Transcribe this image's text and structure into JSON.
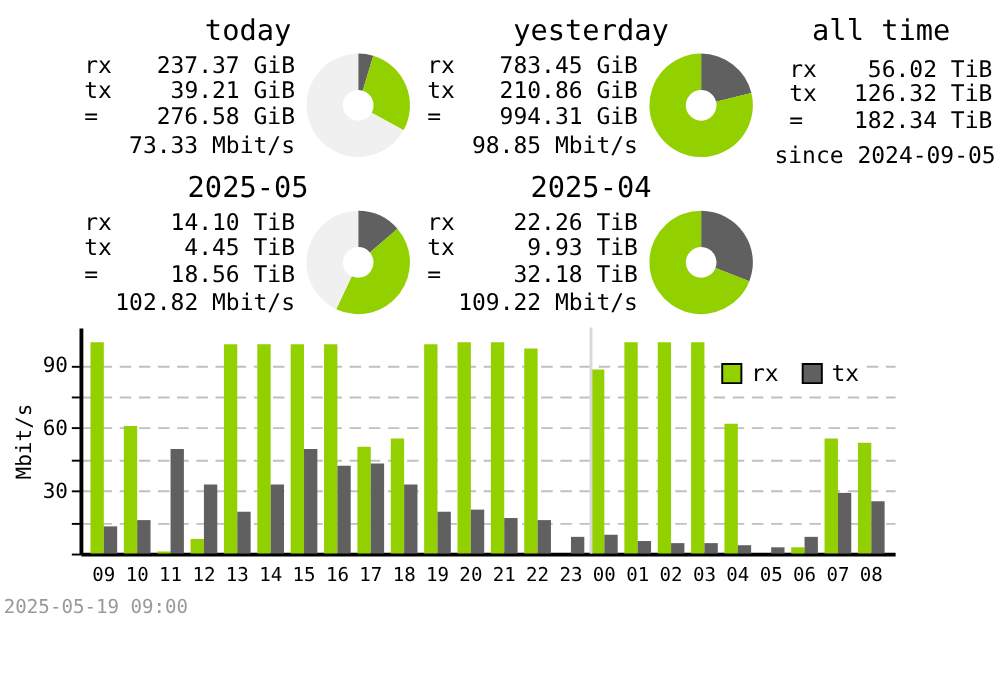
{
  "chart_data": [
    {
      "type": "donut",
      "title": "today",
      "categories": [
        null,
        null,
        null
      ],
      "values": [
        4.7,
        28.3,
        67
      ],
      "colors": [
        "#606060",
        "#92d000",
        "#f0f0f0"
      ],
      "annotations": [
        "rx 237.37 GiB",
        "tx 39.21 GiB",
        "= 276.58 GiB",
        "73.33 Mbit/s"
      ]
    },
    {
      "type": "donut",
      "title": "yesterday",
      "categories": [
        null,
        null
      ],
      "values": [
        21.2,
        78.8
      ],
      "colors": [
        "#606060",
        "#92d000"
      ],
      "annotations": [
        "rx 783.45 GiB",
        "tx 210.86 GiB",
        "= 994.31 GiB",
        "98.85 Mbit/s"
      ]
    },
    {
      "type": "other",
      "title": "all time",
      "annotations": [
        "rx 56.02 TiB",
        "tx 126.32 TiB",
        "= 182.34 TiB",
        "since 2024-09-05"
      ]
    },
    {
      "type": "donut",
      "title": "2025-05",
      "categories": [
        null,
        null,
        null
      ],
      "values": [
        13.7,
        43.3,
        43
      ],
      "colors": [
        "#606060",
        "#92d000",
        "#f0f0f0"
      ],
      "annotations": [
        "rx 14.10 TiB",
        "tx 4.45 TiB",
        "= 18.56 TiB",
        "102.82 Mbit/s"
      ]
    },
    {
      "type": "donut",
      "title": "2025-04",
      "categories": [
        null,
        null
      ],
      "values": [
        30.9,
        69.1
      ],
      "colors": [
        "#606060",
        "#92d000"
      ],
      "annotations": [
        "rx 22.26 TiB",
        "tx 9.93 TiB",
        "= 32.18 TiB",
        "109.22 Mbit/s"
      ]
    },
    {
      "type": "bar",
      "ylabel": "Mbit/s",
      "categories": [
        "09",
        "10",
        "11",
        "12",
        "13",
        "14",
        "15",
        "16",
        "17",
        "18",
        "19",
        "20",
        "21",
        "22",
        "23",
        "00",
        "01",
        "02",
        "03",
        "04",
        "05",
        "06",
        "07",
        "08"
      ],
      "series": [
        {
          "name": "rx",
          "color": "#92d000",
          "values": [
            101,
            61,
            1,
            7,
            100,
            100,
            100,
            100,
            51,
            55,
            100,
            101,
            101,
            98,
            0,
            88,
            101,
            101,
            101,
            62,
            0,
            3,
            55,
            53
          ]
        },
        {
          "name": "tx",
          "color": "#606060",
          "values": [
            13,
            16,
            50,
            33,
            20,
            33,
            50,
            42,
            43,
            33,
            20,
            21,
            17,
            16,
            8,
            9,
            6,
            5,
            5,
            4,
            3,
            8,
            29,
            25
          ]
        }
      ],
      "ylim": [
        0,
        108
      ],
      "yticks": [
        {
          "value": 0,
          "label": null
        },
        {
          "value": 15,
          "label": null
        },
        30,
        {
          "value": 45,
          "label": null
        },
        60,
        {
          "value": 75,
          "label": null
        },
        90
      ],
      "grid": "y",
      "legend": "top right",
      "ref_lines": [
        {
          "axis": "x",
          "value": "00",
          "color": "#d8d8d8"
        }
      ],
      "annotations": [
        "2025-05-19 09:00"
      ]
    }
  ]
}
